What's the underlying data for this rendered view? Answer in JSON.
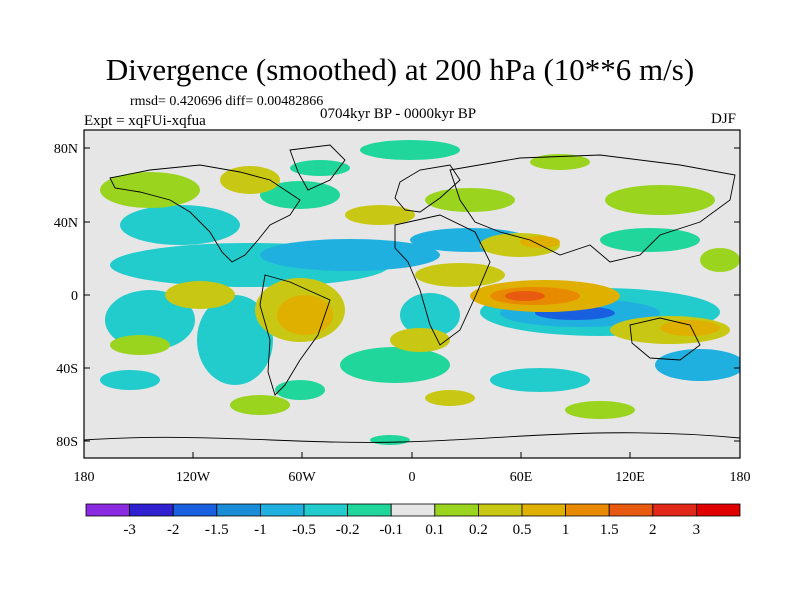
{
  "title": "Divergence (smoothed) at 200 hPa (10**6 m/s)",
  "stats": "rmsd= 0.420696  diff= 0.00482866",
  "period": "0704kyr BP - 0000kyr BP",
  "experiment": "Expt = xqFUi-xqfua",
  "season": "DJF",
  "lat_labels": [
    "80N",
    "40N",
    "0",
    "40S",
    "80S"
  ],
  "lon_labels": [
    "180",
    "120W",
    "60W",
    "0",
    "60E",
    "120E",
    "180"
  ],
  "colorbar": {
    "labels": [
      "-3",
      "-2",
      "-1.5",
      "-1",
      "-0.5",
      "-0.2",
      "-0.1",
      "0.1",
      "0.2",
      "0.5",
      "1",
      "1.5",
      "2",
      "3"
    ],
    "colors": [
      "#8a2be2",
      "#3020d0",
      "#1860e0",
      "#1a8cd8",
      "#20b0e0",
      "#22cccc",
      "#20d69a",
      "#e6e6e6",
      "#9ad41e",
      "#c8c814",
      "#e0b000",
      "#e88a00",
      "#e85a10",
      "#e02818",
      "#e00000"
    ]
  },
  "colors": {
    "background": "#e6e6e6",
    "land_outline": "#000000"
  }
}
